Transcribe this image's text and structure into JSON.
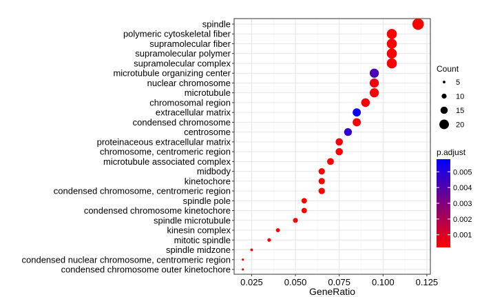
{
  "chart_data": {
    "type": "scatter",
    "xlabel": "GeneRatio",
    "xlim": [
      0.015,
      0.127
    ],
    "x_ticks": [
      0.025,
      0.05,
      0.075,
      0.1,
      0.125
    ],
    "x_tick_labels": [
      "0.025",
      "0.050",
      "0.075",
      "0.100",
      "0.125"
    ],
    "categories": [
      "spindle",
      "polymeric cytoskeletal fiber",
      "supramolecular fiber",
      "supramolecular polymer",
      "supramolecular complex",
      "microtubule organizing center",
      "nuclear chromosome",
      "microtubule",
      "chromosomal region",
      "extracellular matrix",
      "condensed chromosome",
      "centrosome",
      "proteinaceous extracellular matrix",
      "chromosome, centromeric region",
      "microtubule associated complex",
      "midbody",
      "kinetochore",
      "condensed chromosome, centromeric region",
      "spindle pole",
      "condensed chromosome kinetochore",
      "spindle microtubule",
      "kinesin complex",
      "mitotic spindle",
      "spindle midzone",
      "condensed nuclear chromosome, centromeric region",
      "condensed chromosome outer kinetochore"
    ],
    "points": [
      {
        "term": "spindle",
        "gene_ratio": 0.12,
        "count": 24,
        "p_adjust": 0.0002
      },
      {
        "term": "polymeric cytoskeletal fiber",
        "gene_ratio": 0.105,
        "count": 21,
        "p_adjust": 0.0002
      },
      {
        "term": "supramolecular fiber",
        "gene_ratio": 0.105,
        "count": 21,
        "p_adjust": 0.0002
      },
      {
        "term": "supramolecular polymer",
        "gene_ratio": 0.105,
        "count": 21,
        "p_adjust": 0.0002
      },
      {
        "term": "supramolecular complex",
        "gene_ratio": 0.105,
        "count": 21,
        "p_adjust": 0.0002
      },
      {
        "term": "microtubule organizing center",
        "gene_ratio": 0.095,
        "count": 19,
        "p_adjust": 0.0042
      },
      {
        "term": "nuclear chromosome",
        "gene_ratio": 0.095,
        "count": 19,
        "p_adjust": 0.0005
      },
      {
        "term": "microtubule",
        "gene_ratio": 0.095,
        "count": 19,
        "p_adjust": 0.0003
      },
      {
        "term": "chromosomal region",
        "gene_ratio": 0.09,
        "count": 18,
        "p_adjust": 0.0003
      },
      {
        "term": "extracellular matrix",
        "gene_ratio": 0.085,
        "count": 17,
        "p_adjust": 0.0056
      },
      {
        "term": "condensed chromosome",
        "gene_ratio": 0.085,
        "count": 17,
        "p_adjust": 0.0003
      },
      {
        "term": "centrosome",
        "gene_ratio": 0.08,
        "count": 16,
        "p_adjust": 0.0048
      },
      {
        "term": "proteinaceous extracellular matrix",
        "gene_ratio": 0.075,
        "count": 15,
        "p_adjust": 0.0004
      },
      {
        "term": "chromosome, centromeric region",
        "gene_ratio": 0.075,
        "count": 15,
        "p_adjust": 0.0003
      },
      {
        "term": "microtubule associated complex",
        "gene_ratio": 0.07,
        "count": 14,
        "p_adjust": 0.0002
      },
      {
        "term": "midbody",
        "gene_ratio": 0.065,
        "count": 13,
        "p_adjust": 0.0002
      },
      {
        "term": "kinetochore",
        "gene_ratio": 0.065,
        "count": 13,
        "p_adjust": 0.0002
      },
      {
        "term": "condensed chromosome, centromeric region",
        "gene_ratio": 0.065,
        "count": 13,
        "p_adjust": 0.0002
      },
      {
        "term": "spindle pole",
        "gene_ratio": 0.055,
        "count": 11,
        "p_adjust": 0.0002
      },
      {
        "term": "condensed chromosome kinetochore",
        "gene_ratio": 0.055,
        "count": 11,
        "p_adjust": 0.0002
      },
      {
        "term": "spindle microtubule",
        "gene_ratio": 0.05,
        "count": 10,
        "p_adjust": 0.0002
      },
      {
        "term": "kinesin complex",
        "gene_ratio": 0.04,
        "count": 8,
        "p_adjust": 0.0002
      },
      {
        "term": "mitotic spindle",
        "gene_ratio": 0.035,
        "count": 7,
        "p_adjust": 0.0002
      },
      {
        "term": "spindle midzone",
        "gene_ratio": 0.025,
        "count": 5,
        "p_adjust": 0.0002
      },
      {
        "term": "condensed nuclear chromosome, centromeric region",
        "gene_ratio": 0.02,
        "count": 4,
        "p_adjust": 0.0002
      },
      {
        "term": "condensed chromosome outer kinetochore",
        "gene_ratio": 0.02,
        "count": 4,
        "p_adjust": 0.0002
      }
    ],
    "size_legend": {
      "title": "Count",
      "values": [
        5,
        10,
        15,
        20
      ],
      "labels": [
        "5",
        "10",
        "15",
        "20"
      ]
    },
    "color_legend": {
      "title": "p.adjust",
      "min": 0.0002,
      "max": 0.0058,
      "ticks": [
        0.001,
        0.002,
        0.003,
        0.004,
        0.005
      ],
      "tick_labels": [
        "0.001",
        "0.002",
        "0.003",
        "0.004",
        "0.005"
      ],
      "low_color": "#ff0000",
      "high_color": "#0000ff"
    },
    "grid": true,
    "legend_position": "right",
    "colors": {
      "panel_background": "#ffffff",
      "grid_major": "#e6e6e6",
      "grid_minor": "#f2f2f2",
      "panel_border": "#333333"
    }
  }
}
